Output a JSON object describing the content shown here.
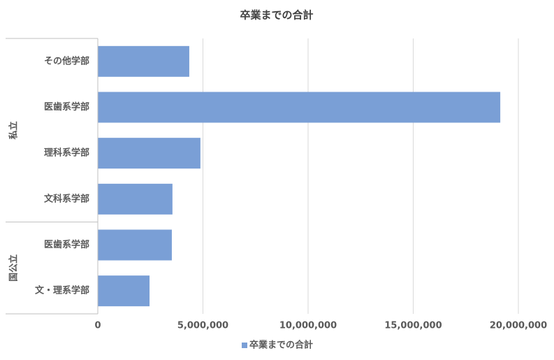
{
  "chart_data": {
    "type": "bar",
    "orientation": "horizontal",
    "title": "卒業までの合計",
    "groups": [
      {
        "label": "私立",
        "categories": [
          "その他学部",
          "医歯系学部",
          "理科系学部",
          "文科系学部"
        ]
      },
      {
        "label": "国公立",
        "categories": [
          "医歯系学部",
          "文・理系学部"
        ]
      }
    ],
    "series": [
      {
        "name": "卒業までの合計",
        "color": "#7a9fd6",
        "values": [
          4350000,
          19140000,
          4880000,
          3550000,
          3520000,
          2460000
        ]
      }
    ],
    "xlim": [
      0,
      20000000
    ],
    "xticks": [
      0,
      {
        "value": 5000000,
        "label": "5,000,000"
      },
      {
        "value": 10000000,
        "label": "10,000,000"
      },
      {
        "value": 15000000,
        "label": "15,000,000"
      },
      {
        "value": 20000000,
        "label": "20,000,000"
      }
    ],
    "grid": true,
    "legend": "bottom"
  }
}
